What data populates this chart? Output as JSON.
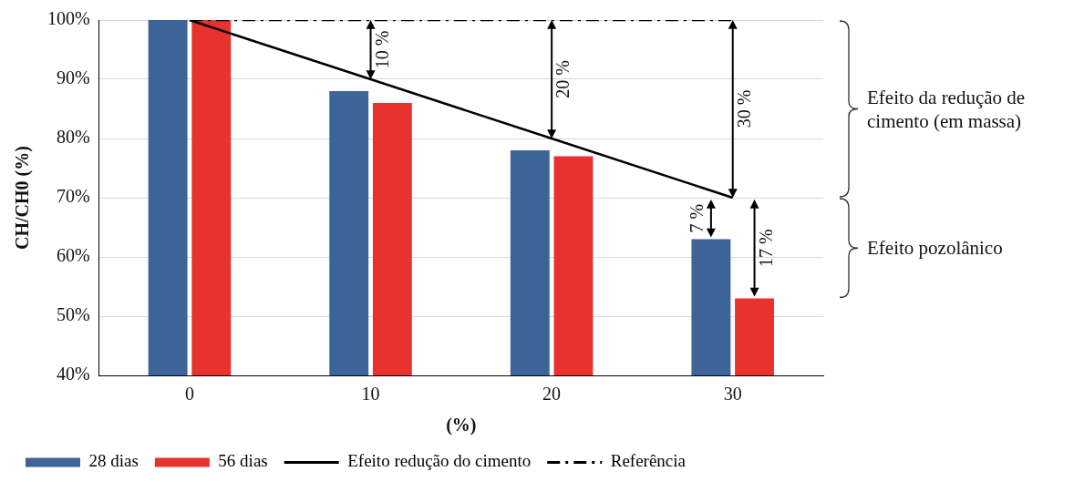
{
  "chart_data": {
    "type": "bar",
    "xlabel": "(%)",
    "ylabel": "CH/CH0 (%)",
    "categories": [
      "0",
      "10",
      "20",
      "30"
    ],
    "series": [
      {
        "name": "28 dias",
        "color": "#3c6499",
        "values": [
          100,
          88,
          78,
          63
        ]
      },
      {
        "name": "56 dias",
        "color": "#e8322e",
        "values": [
          100,
          86,
          77,
          53
        ]
      },
      {
        "name": "Efeito redução do cimento",
        "type": "line",
        "color": "#000000",
        "values": [
          100,
          90,
          80,
          70
        ]
      },
      {
        "name": "Referência",
        "type": "line",
        "color": "#000000",
        "line_style": "dashed",
        "values": [
          100,
          100,
          100,
          100
        ]
      }
    ],
    "ylim": [
      40,
      100
    ],
    "yticks": [
      {
        "value": 40,
        "label": "40%"
      },
      {
        "value": 50,
        "label": "50%"
      },
      {
        "value": 60,
        "label": "60%"
      },
      {
        "value": 70,
        "label": "70%"
      },
      {
        "value": 80,
        "label": "80%"
      },
      {
        "value": 90,
        "label": "90%"
      },
      {
        "value": 100,
        "label": "100%"
      }
    ],
    "grid": "y",
    "legend": "bottom",
    "marker": "none",
    "annotations": [
      "10 %",
      "20 %",
      "30 %",
      "7 %",
      "17 %",
      "Efeito da redução de cimento (em massa)",
      "Efeito pozolânico"
    ]
  }
}
